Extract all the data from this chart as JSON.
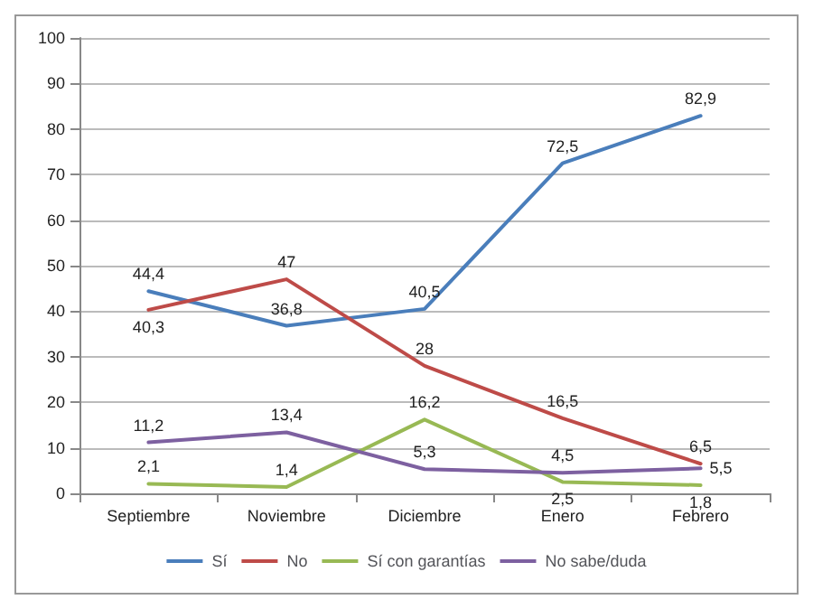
{
  "chart_data": {
    "type": "line",
    "categories": [
      "Septiembre",
      "Noviembre",
      "Diciembre",
      "Enero",
      "Febrero"
    ],
    "series": [
      {
        "name": "Sí",
        "color": "#4a7ebb",
        "values": [
          44.4,
          36.8,
          40.5,
          72.5,
          82.9
        ],
        "value_labels": [
          "44,4",
          "36,8",
          "40,5",
          "72,5",
          "82,9"
        ]
      },
      {
        "name": "No",
        "color": "#be4b48",
        "values": [
          40.3,
          47,
          28,
          16.5,
          6.5
        ],
        "value_labels": [
          "40,3",
          "47",
          "28",
          "16,5",
          "6,5"
        ]
      },
      {
        "name": "Sí con garantías",
        "color": "#98b954",
        "values": [
          2.1,
          1.4,
          16.2,
          2.5,
          1.8
        ],
        "value_labels": [
          "2,1",
          "1,4",
          "16,2",
          "2,5",
          "1,8"
        ]
      },
      {
        "name": "No sabe/duda",
        "color": "#7d60a0",
        "values": [
          11.2,
          13.4,
          5.3,
          4.5,
          5.5
        ],
        "value_labels": [
          "11,2",
          "13,4",
          "5,3",
          "4,5",
          "5,5"
        ]
      }
    ],
    "ylim": [
      0,
      100
    ],
    "yticks": [
      0,
      10,
      20,
      30,
      40,
      50,
      60,
      70,
      80,
      90,
      100
    ],
    "grid": "y",
    "legend": "bottom",
    "marker": "none",
    "line_style": "solid"
  }
}
